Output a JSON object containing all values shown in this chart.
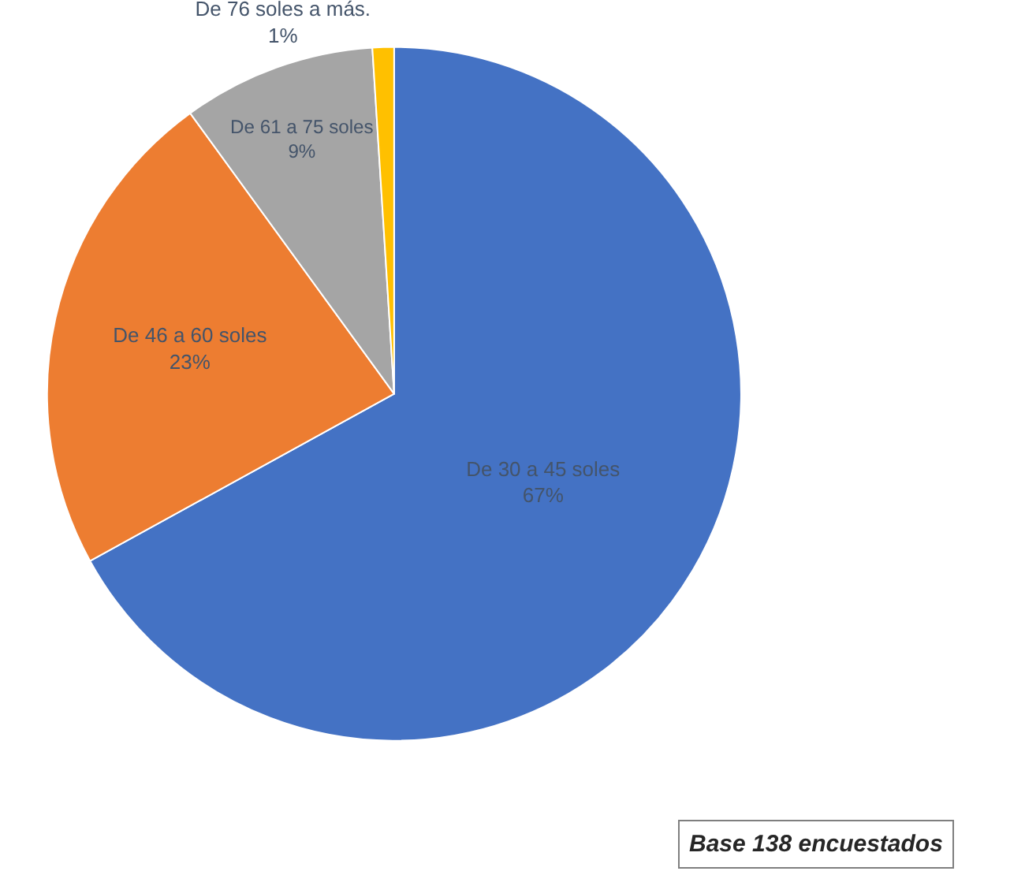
{
  "chart_data": {
    "type": "pie",
    "categories": [
      "De 30 a 45 soles",
      "De 46 a 60 soles",
      "De 61 a 75 soles",
      "De 76 soles a más."
    ],
    "values": [
      67,
      23,
      9,
      1
    ],
    "value_labels": [
      "67%",
      "23%",
      "9%",
      "1%"
    ],
    "colors": [
      "#4472c4",
      "#ed7d31",
      "#a5a5a5",
      "#ffc000"
    ],
    "legend": false,
    "annotations": [
      "Base 138 encuestados"
    ]
  }
}
